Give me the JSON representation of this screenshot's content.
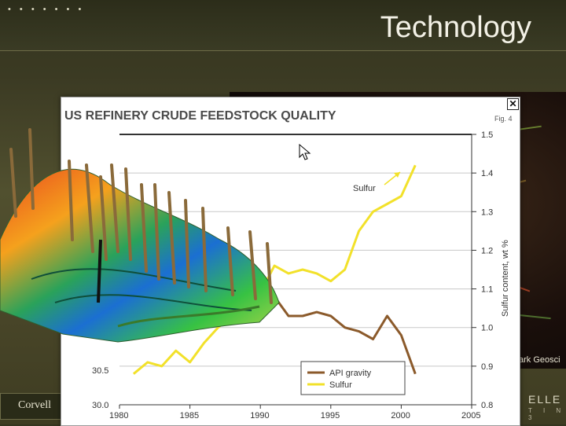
{
  "slide": {
    "dots": "• • • • • • •",
    "title": "Technology",
    "footer_left": "Corvell",
    "brand_main": "ELLE",
    "brand_sub": "T I N 3",
    "bg_caption": "ark Geosci"
  },
  "chart_window": {
    "close_symbol": "✕",
    "fig_label": "Fig. 4"
  },
  "chart_data": {
    "type": "line",
    "title": "US REFINERY CRUDE FEEDSTOCK QUALITY",
    "x_ticks": [
      "1980",
      "1985",
      "1990",
      "1995",
      "2000",
      "2005"
    ],
    "xlim": [
      1980,
      2005
    ],
    "y_left_ticks": [
      "30.0",
      "30.5"
    ],
    "y_right_ticks": [
      "0.8",
      "0.9",
      "1.0",
      "1.1",
      "1.2",
      "1.3",
      "1.4",
      "1.5"
    ],
    "y_right_label": "Sulfur content, wt %",
    "y_right_lim": [
      0.8,
      1.5
    ],
    "annotation": "Sulfur",
    "legend": [
      {
        "name": "API gravity",
        "color": "#8b5a2b"
      },
      {
        "name": "Sulfur",
        "color": "#f2e12a"
      }
    ],
    "series": [
      {
        "name": "Sulfur",
        "x": [
          1981,
          1982,
          1983,
          1984,
          1985,
          1986,
          1987,
          1988,
          1989,
          1990,
          1991,
          1992,
          1993,
          1994,
          1995,
          1996,
          1997,
          1998,
          1999,
          2000,
          2001
        ],
        "y": [
          0.88,
          0.91,
          0.9,
          0.94,
          0.91,
          0.96,
          1.0,
          1.03,
          1.06,
          1.09,
          1.16,
          1.14,
          1.15,
          1.14,
          1.12,
          1.15,
          1.25,
          1.3,
          1.32,
          1.34,
          1.42
        ]
      },
      {
        "name": "API gravity",
        "x": [
          1990,
          1991,
          1992,
          1993,
          1994,
          1995,
          1996,
          1997,
          1998,
          1999,
          2000,
          2001
        ],
        "y": [
          1.11,
          1.08,
          1.03,
          1.03,
          1.04,
          1.03,
          1.0,
          0.99,
          0.97,
          1.03,
          0.98,
          0.88
        ]
      }
    ]
  }
}
